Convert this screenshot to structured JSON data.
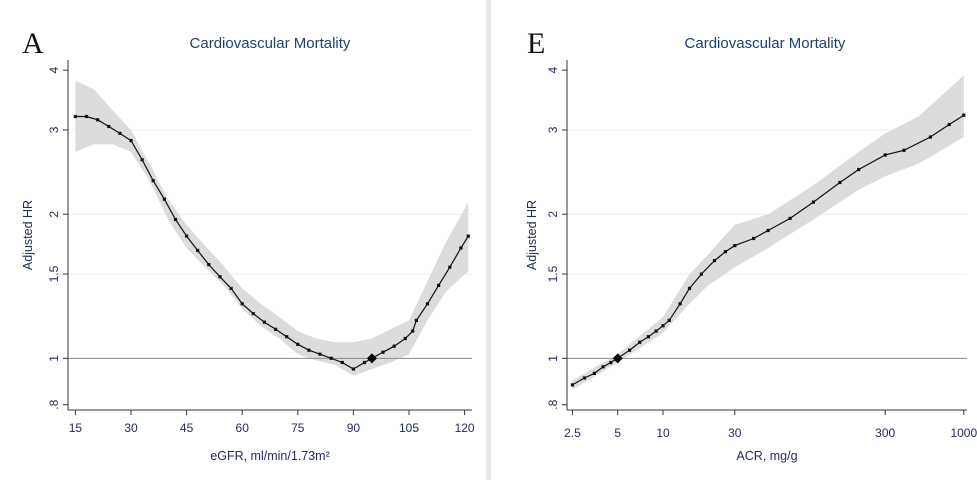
{
  "chart_data": [
    {
      "type": "line",
      "panel_letter": "A",
      "title": "Cardiovascular Mortality",
      "xlabel": "eGFR, ml/min/1.73m²",
      "ylabel": "Adjusted HR",
      "x_scale": "linear",
      "y_scale": "log",
      "xlim": [
        13,
        122
      ],
      "ylim": [
        0.78,
        4.2
      ],
      "x_ticks": [
        15,
        30,
        45,
        60,
        75,
        90,
        105,
        120
      ],
      "x_tick_labels": [
        "15",
        "30",
        "45",
        "60",
        "75",
        "90",
        "105",
        "120"
      ],
      "y_ticks": [
        0.8,
        1,
        1.5,
        2,
        3,
        4
      ],
      "y_tick_labels": [
        ".8",
        "1",
        "1.5",
        "2",
        "3",
        "4"
      ],
      "gridlines_y": [
        1.5,
        2,
        3
      ],
      "reference_line": 1,
      "grid": true,
      "reference_point": {
        "x": 95,
        "y": 1.0
      },
      "series": [
        {
          "values": [
            [
              15,
              3.2
            ],
            [
              18,
              3.2
            ],
            [
              21,
              3.15
            ],
            [
              24,
              3.05
            ],
            [
              27,
              2.95
            ],
            [
              30,
              2.85
            ],
            [
              33,
              2.6
            ],
            [
              36,
              2.35
            ],
            [
              39,
              2.15
            ],
            [
              42,
              1.95
            ],
            [
              45,
              1.8
            ],
            [
              48,
              1.68
            ],
            [
              51,
              1.57
            ],
            [
              54,
              1.48
            ],
            [
              57,
              1.4
            ],
            [
              60,
              1.3
            ],
            [
              63,
              1.24
            ],
            [
              66,
              1.19
            ],
            [
              69,
              1.15
            ],
            [
              72,
              1.11
            ],
            [
              75,
              1.07
            ],
            [
              78,
              1.04
            ],
            [
              81,
              1.02
            ],
            [
              84,
              1.0
            ],
            [
              87,
              0.98
            ],
            [
              90,
              0.95
            ],
            [
              93,
              0.98
            ],
            [
              95,
              1.0
            ],
            [
              98,
              1.03
            ],
            [
              101,
              1.06
            ],
            [
              104,
              1.1
            ],
            [
              106,
              1.14
            ],
            [
              107,
              1.2
            ],
            [
              110,
              1.3
            ],
            [
              113,
              1.42
            ],
            [
              116,
              1.55
            ],
            [
              119,
              1.7
            ],
            [
              121,
              1.8
            ]
          ]
        }
      ],
      "confidence_band": {
        "upper": [
          [
            15,
            3.8
          ],
          [
            20,
            3.65
          ],
          [
            25,
            3.3
          ],
          [
            30,
            3.0
          ],
          [
            35,
            2.55
          ],
          [
            40,
            2.15
          ],
          [
            45,
            1.9
          ],
          [
            50,
            1.72
          ],
          [
            55,
            1.56
          ],
          [
            60,
            1.4
          ],
          [
            65,
            1.3
          ],
          [
            70,
            1.22
          ],
          [
            75,
            1.14
          ],
          [
            80,
            1.1
          ],
          [
            85,
            1.08
          ],
          [
            90,
            1.08
          ],
          [
            95,
            1.1
          ],
          [
            100,
            1.15
          ],
          [
            105,
            1.2
          ],
          [
            110,
            1.45
          ],
          [
            115,
            1.75
          ],
          [
            121,
            2.12
          ]
        ],
        "lower": [
          [
            15,
            2.7
          ],
          [
            20,
            2.8
          ],
          [
            25,
            2.8
          ],
          [
            30,
            2.7
          ],
          [
            35,
            2.35
          ],
          [
            40,
            1.95
          ],
          [
            45,
            1.7
          ],
          [
            50,
            1.55
          ],
          [
            55,
            1.42
          ],
          [
            60,
            1.27
          ],
          [
            65,
            1.17
          ],
          [
            70,
            1.1
          ],
          [
            75,
            1.02
          ],
          [
            80,
            0.99
          ],
          [
            85,
            0.97
          ],
          [
            90,
            0.92
          ],
          [
            95,
            0.95
          ],
          [
            100,
            0.98
          ],
          [
            105,
            1.02
          ],
          [
            110,
            1.2
          ],
          [
            115,
            1.38
          ],
          [
            121,
            1.52
          ]
        ]
      }
    },
    {
      "type": "line",
      "panel_letter": "E",
      "title": "Cardiovascular Mortality",
      "xlabel": "ACR, mg/g",
      "ylabel": "Adjusted HR",
      "x_scale": "log",
      "y_scale": "log",
      "xlim": [
        2.3,
        1050
      ],
      "ylim": [
        0.78,
        4.2
      ],
      "x_ticks": [
        2.5,
        5,
        10,
        30,
        300,
        1000
      ],
      "x_tick_labels": [
        "2.5",
        "5",
        "10",
        "30",
        "300",
        "1000"
      ],
      "y_ticks": [
        0.8,
        1,
        1.5,
        2,
        3,
        4
      ],
      "y_tick_labels": [
        ".8",
        "1",
        "1.5",
        "2",
        "3",
        "4"
      ],
      "gridlines_y": [
        1.5,
        2,
        3
      ],
      "reference_line": 1,
      "grid": true,
      "reference_point": {
        "x": 5,
        "y": 1.0
      },
      "series": [
        {
          "values": [
            [
              2.5,
              0.88
            ],
            [
              3,
              0.91
            ],
            [
              3.5,
              0.93
            ],
            [
              4,
              0.96
            ],
            [
              4.5,
              0.98
            ],
            [
              5,
              1.0
            ],
            [
              6,
              1.04
            ],
            [
              7,
              1.08
            ],
            [
              8,
              1.11
            ],
            [
              9,
              1.14
            ],
            [
              10,
              1.17
            ],
            [
              11,
              1.2
            ],
            [
              13,
              1.3
            ],
            [
              15,
              1.4
            ],
            [
              18,
              1.5
            ],
            [
              22,
              1.6
            ],
            [
              26,
              1.67
            ],
            [
              30,
              1.72
            ],
            [
              40,
              1.78
            ],
            [
              50,
              1.85
            ],
            [
              70,
              1.96
            ],
            [
              100,
              2.12
            ],
            [
              150,
              2.33
            ],
            [
              200,
              2.48
            ],
            [
              300,
              2.66
            ],
            [
              400,
              2.72
            ],
            [
              600,
              2.9
            ],
            [
              800,
              3.08
            ],
            [
              1000,
              3.22
            ]
          ]
        }
      ],
      "confidence_band": {
        "upper": [
          [
            2.5,
            0.9
          ],
          [
            5,
            1.02
          ],
          [
            10,
            1.22
          ],
          [
            15,
            1.5
          ],
          [
            20,
            1.65
          ],
          [
            30,
            1.9
          ],
          [
            50,
            2.0
          ],
          [
            100,
            2.3
          ],
          [
            200,
            2.7
          ],
          [
            300,
            2.95
          ],
          [
            500,
            3.2
          ],
          [
            1000,
            3.9
          ]
        ],
        "lower": [
          [
            2.5,
            0.86
          ],
          [
            5,
            0.98
          ],
          [
            10,
            1.13
          ],
          [
            15,
            1.3
          ],
          [
            20,
            1.42
          ],
          [
            30,
            1.55
          ],
          [
            50,
            1.7
          ],
          [
            100,
            1.95
          ],
          [
            200,
            2.25
          ],
          [
            300,
            2.4
          ],
          [
            500,
            2.55
          ],
          [
            1000,
            2.9
          ]
        ]
      }
    }
  ]
}
